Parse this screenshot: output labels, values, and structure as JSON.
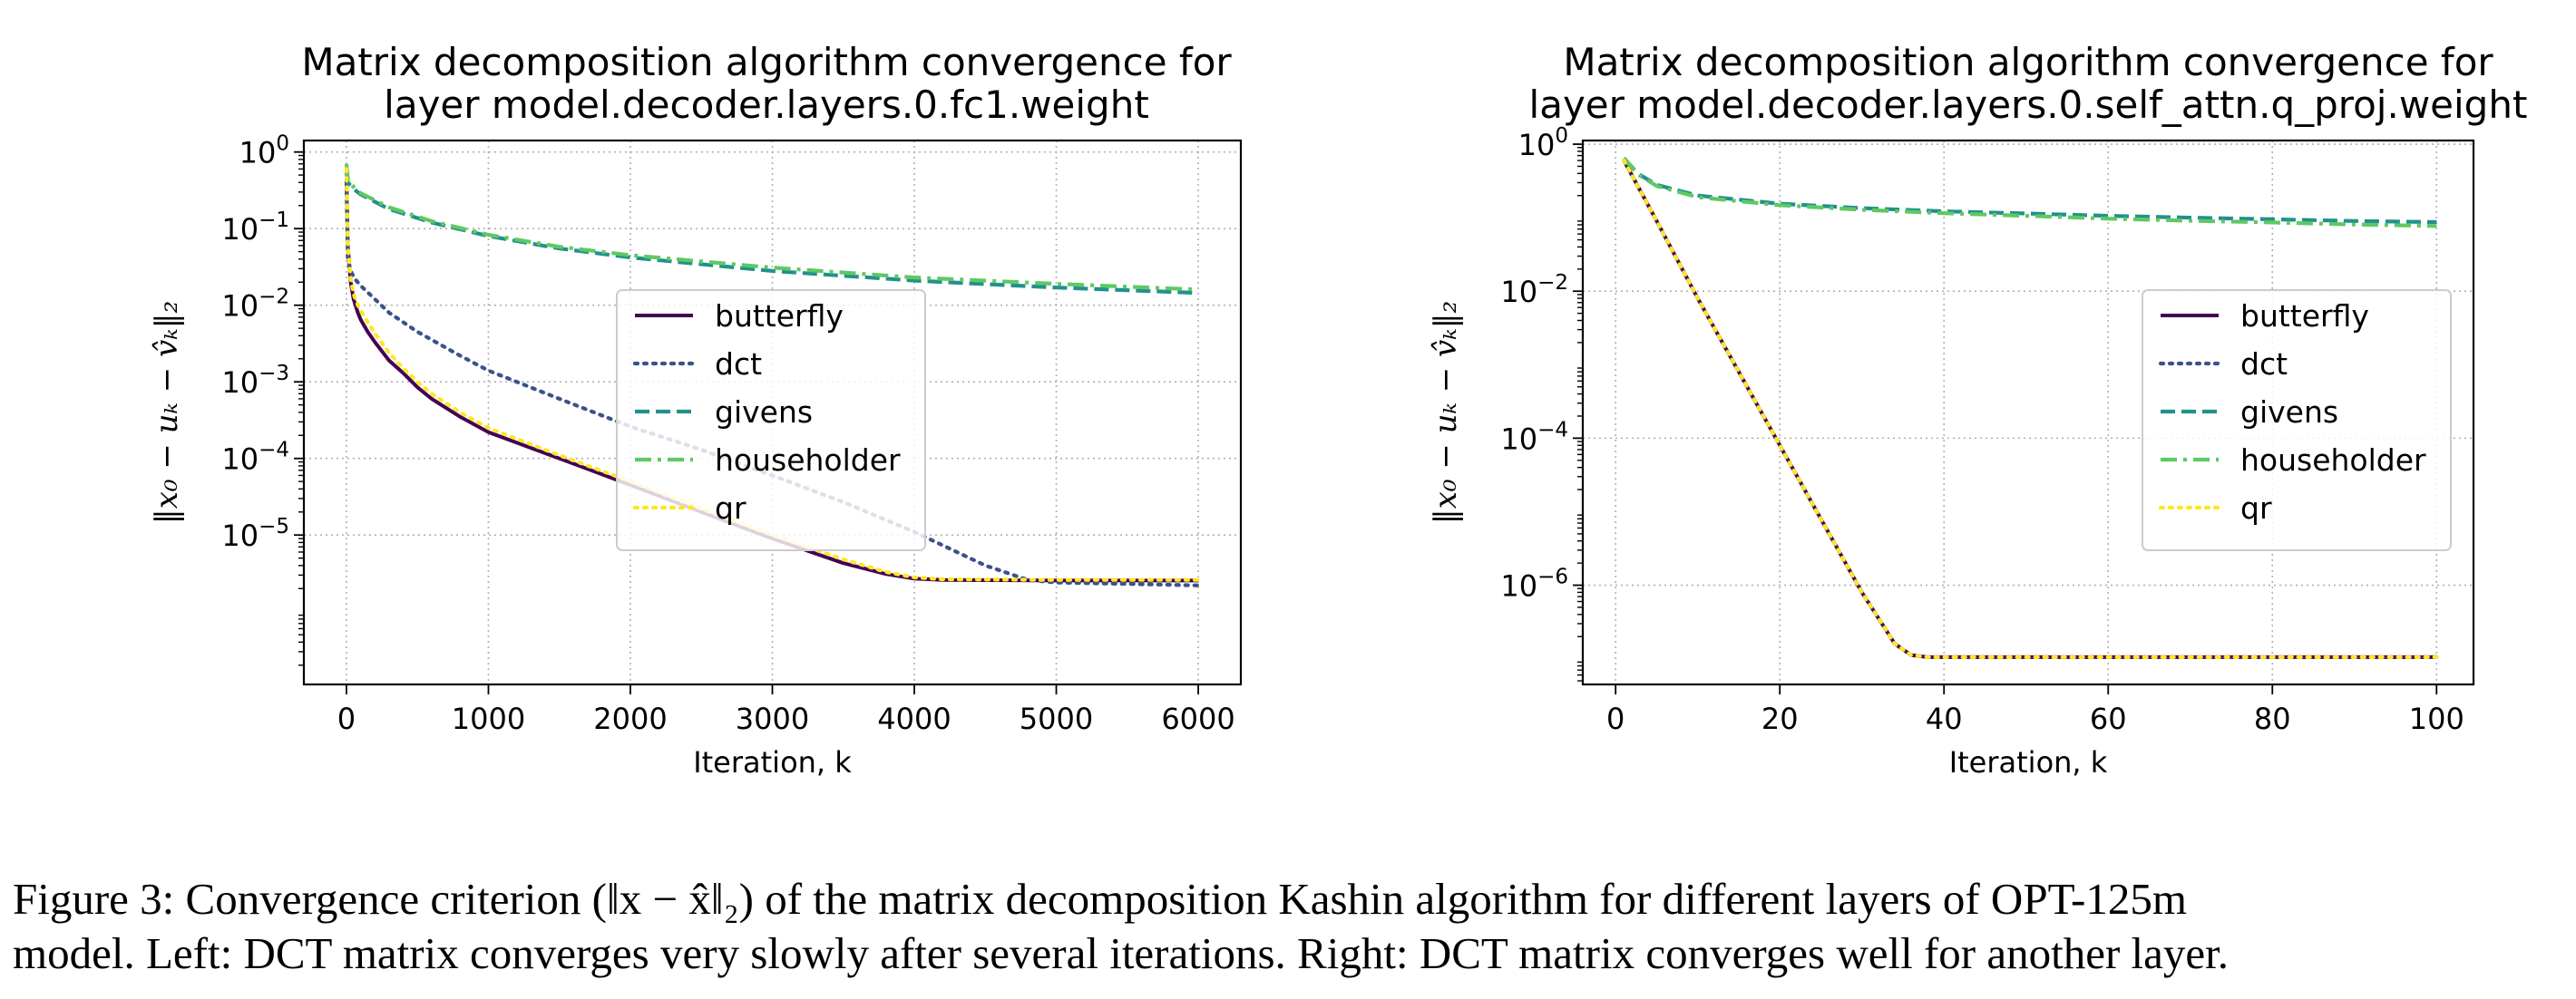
{
  "chart_data": [
    {
      "type": "line",
      "title": "Matrix decomposition algorithm convergence for layer model.decoder.layers.0.fc1.weight",
      "title_lines": [
        "Matrix decomposition algorithm convergence for",
        "layer model.decoder.layers.0.fc1.weight"
      ],
      "xlabel": "Iteration, k",
      "ylabel": "‖x₀ − uₖ − v̂ₖ‖₂",
      "yscale": "log",
      "xlim": [
        -300,
        6300
      ],
      "ylim_log10": [
        -6.95,
        0.15
      ],
      "xticks": [
        0,
        1000,
        2000,
        3000,
        4000,
        5000,
        6000
      ],
      "xtick_labels": [
        "0",
        "1000",
        "2000",
        "3000",
        "4000",
        "5000",
        "6000"
      ],
      "yticks_exp": [
        0,
        -1,
        -2,
        -3,
        -4,
        -5
      ],
      "ytick_labels": [
        "10",
        "10",
        "10",
        "10",
        "10",
        "10"
      ],
      "ytick_exponents": [
        "0",
        "−1",
        "−2",
        "−3",
        "−4",
        "−5"
      ],
      "grid": true,
      "legend": "center-right",
      "series": [
        {
          "name": "butterfly",
          "color": "#440154",
          "style": "solid",
          "x": [
            0,
            10,
            30,
            50,
            80,
            100,
            150,
            200,
            300,
            400,
            500,
            600,
            800,
            1000,
            1500,
            2000,
            2500,
            3000,
            3500,
            3800,
            4000,
            4200,
            5000,
            6000
          ],
          "y": [
            0.45,
            0.06,
            0.02,
            0.012,
            0.008,
            0.0065,
            0.0045,
            0.0033,
            0.0019,
            0.0013,
            0.00085,
            0.0006,
            0.00035,
            0.00022,
            0.0001,
            4.5e-05,
            2e-05,
            9e-06,
            4.3e-06,
            3.1e-06,
            2.7e-06,
            2.6e-06,
            2.55e-06,
            2.55e-06
          ]
        },
        {
          "name": "dct",
          "color": "#3b528b",
          "style": "dotted",
          "x": [
            0,
            10,
            30,
            60,
            100,
            200,
            300,
            500,
            800,
            1000,
            1500,
            2000,
            2500,
            3000,
            3500,
            4000,
            4500,
            4800,
            5000,
            5500,
            6000
          ],
          "y": [
            0.4,
            0.04,
            0.028,
            0.022,
            0.018,
            0.012,
            0.008,
            0.0045,
            0.0022,
            0.0014,
            0.0006,
            0.00026,
            0.00013,
            6e-05,
            2.7e-05,
            1.1e-05,
            4e-06,
            2.6e-06,
            2.4e-06,
            2.3e-06,
            2.2e-06
          ]
        },
        {
          "name": "givens",
          "color": "#21918c",
          "style": "dashed",
          "x": [
            0,
            10,
            50,
            100,
            300,
            600,
            1000,
            1500,
            2000,
            3000,
            4000,
            5000,
            6000
          ],
          "y": [
            0.55,
            0.4,
            0.33,
            0.28,
            0.18,
            0.12,
            0.08,
            0.055,
            0.042,
            0.028,
            0.021,
            0.017,
            0.0145
          ]
        },
        {
          "name": "householder",
          "color": "#5ec962",
          "style": "dashdot",
          "x": [
            0,
            10,
            50,
            100,
            300,
            600,
            1000,
            1500,
            2000,
            3000,
            4000,
            5000,
            6000
          ],
          "y": [
            0.7,
            0.45,
            0.35,
            0.29,
            0.19,
            0.125,
            0.083,
            0.058,
            0.045,
            0.031,
            0.023,
            0.019,
            0.016
          ]
        },
        {
          "name": "qr",
          "color": "#fde725",
          "style": "dotted",
          "x": [
            0,
            10,
            30,
            50,
            80,
            100,
            150,
            200,
            300,
            400,
            500,
            600,
            800,
            1000,
            1500,
            2000,
            2500,
            3000,
            3500,
            3800,
            4000,
            4200,
            5000,
            6000
          ],
          "y": [
            0.6,
            0.06,
            0.022,
            0.014,
            0.01,
            0.0085,
            0.006,
            0.0043,
            0.0024,
            0.0015,
            0.001,
            0.0007,
            0.0004,
            0.00025,
            0.00011,
            5e-05,
            2.2e-05,
            1e-05,
            4.8e-06,
            3.3e-06,
            2.8e-06,
            2.65e-06,
            2.6e-06,
            2.6e-06
          ]
        }
      ]
    },
    {
      "type": "line",
      "title": "Matrix decomposition algorithm convergence for layer model.decoder.layers.0.self_attn.q_proj.weight",
      "title_lines": [
        "Matrix decomposition algorithm convergence for",
        "layer model.decoder.layers.0.self_attn.q_proj.weight"
      ],
      "xlabel": "Iteration, k",
      "ylabel": "‖x₀ − uₖ − v̂ₖ‖₂",
      "yscale": "log",
      "xlim": [
        -4,
        104.5
      ],
      "ylim_log10": [
        -7.35,
        0.05
      ],
      "xticks": [
        0,
        20,
        40,
        60,
        80,
        100
      ],
      "xtick_labels": [
        "0",
        "20",
        "40",
        "60",
        "80",
        "100"
      ],
      "yticks_exp": [
        0,
        -2,
        -4,
        -6
      ],
      "ytick_labels": [
        "10",
        "10",
        "10",
        "10"
      ],
      "ytick_exponents": [
        "0",
        "−2",
        "−4",
        "−6"
      ],
      "grid": true,
      "legend": "center-right",
      "series": [
        {
          "name": "butterfly",
          "color": "#440154",
          "style": "solid",
          "x": [
            1,
            5,
            10,
            20,
            30,
            34,
            36,
            38,
            40,
            60,
            100
          ],
          "y": [
            0.6,
            0.09,
            0.008,
            8e-05,
            8e-07,
            1.6e-07,
            1.12e-07,
            1.05e-07,
            1.05e-07,
            1.05e-07,
            1.05e-07
          ]
        },
        {
          "name": "dct",
          "color": "#3b528b",
          "style": "dotted",
          "x": [
            1,
            5,
            10,
            20,
            30,
            34,
            36,
            38,
            40,
            60,
            100
          ],
          "y": [
            0.6,
            0.09,
            0.008,
            8e-05,
            8e-07,
            1.6e-07,
            1.12e-07,
            1.05e-07,
            1.05e-07,
            1.05e-07,
            1.05e-07
          ]
        },
        {
          "name": "givens",
          "color": "#21918c",
          "style": "dashed",
          "x": [
            1,
            3,
            5,
            10,
            20,
            30,
            40,
            50,
            60,
            70,
            80,
            90,
            100
          ],
          "y": [
            0.6,
            0.38,
            0.28,
            0.2,
            0.155,
            0.135,
            0.122,
            0.114,
            0.106,
            0.1,
            0.095,
            0.09,
            0.087
          ]
        },
        {
          "name": "householder",
          "color": "#5ec962",
          "style": "dashdot",
          "x": [
            1,
            3,
            5,
            10,
            20,
            30,
            40,
            50,
            60,
            70,
            80,
            90,
            100
          ],
          "y": [
            0.65,
            0.37,
            0.27,
            0.19,
            0.148,
            0.128,
            0.115,
            0.106,
            0.097,
            0.091,
            0.086,
            0.081,
            0.077
          ]
        },
        {
          "name": "qr",
          "color": "#fde725",
          "style": "dotted",
          "x": [
            1,
            5,
            10,
            20,
            30,
            34,
            36,
            38,
            40,
            60,
            100
          ],
          "y": [
            0.6,
            0.09,
            0.008,
            8e-05,
            8e-07,
            1.6e-07,
            1.12e-07,
            1.05e-07,
            1.05e-07,
            1.05e-07,
            1.05e-07
          ]
        }
      ]
    }
  ],
  "caption": {
    "line1": "Figure 3: Convergence criterion (‖x − x̂‖₂) of the matrix decomposition Kashin algorithm for different layers of OPT-125m",
    "line2": "model. Left: DCT matrix converges very slowly after several iterations. Right: DCT matrix converges well for another layer."
  }
}
